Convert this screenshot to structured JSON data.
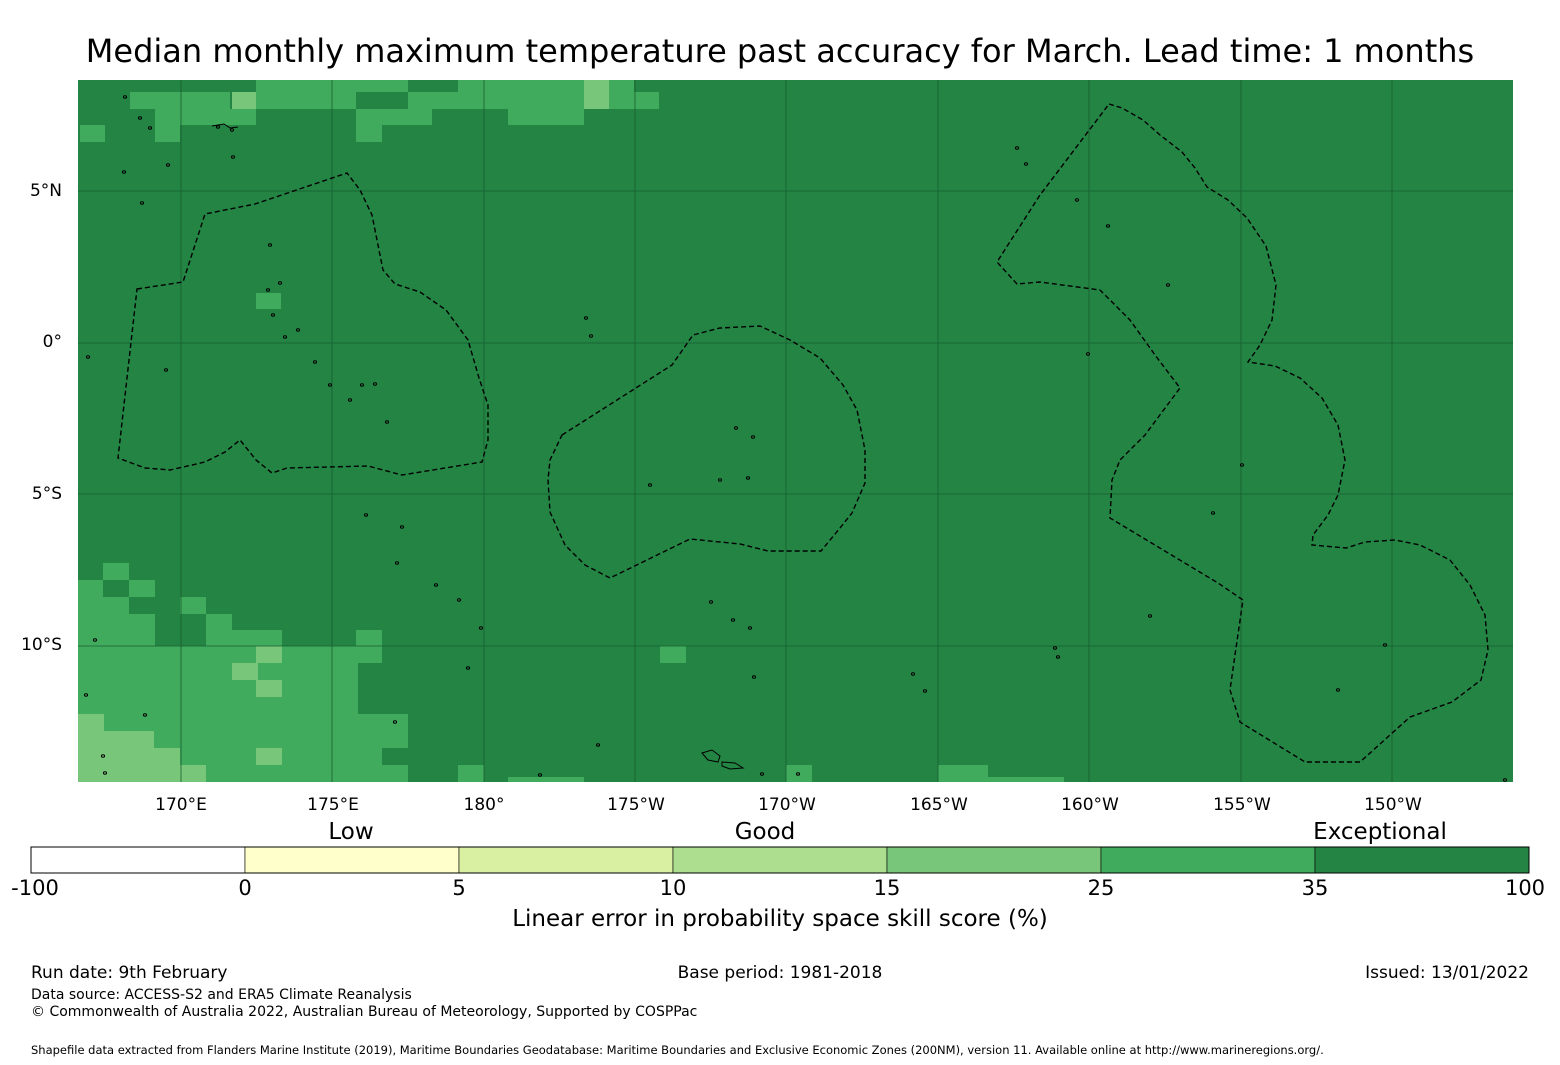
{
  "title": "Median monthly maximum temperature past accuracy for March. Lead time: 1 months",
  "map": {
    "lat_labels": [
      "5°N",
      "0°",
      "5°S",
      "10°S"
    ],
    "lon_labels": [
      "170°E",
      "175°E",
      "180°",
      "175°W",
      "170°W",
      "165°W",
      "160°W",
      "155°W",
      "150°W"
    ],
    "base_color": "#238443",
    "grid_color": "#1a5e30",
    "boundary_color": "#000000"
  },
  "colorbar": {
    "categories": [
      "Low",
      "Good",
      "Exceptional"
    ],
    "ticks": [
      "-100",
      "0",
      "5",
      "10",
      "15",
      "25",
      "35",
      "100"
    ],
    "bins": [
      {
        "from": -100,
        "to": 0,
        "color": "#ffffff"
      },
      {
        "from": 0,
        "to": 5,
        "color": "#ffffcc"
      },
      {
        "from": 5,
        "to": 10,
        "color": "#d9f0a3"
      },
      {
        "from": 10,
        "to": 15,
        "color": "#addd8e"
      },
      {
        "from": 15,
        "to": 25,
        "color": "#78c679"
      },
      {
        "from": 25,
        "to": 35,
        "color": "#41ab5d"
      },
      {
        "from": 35,
        "to": 100,
        "color": "#238443"
      }
    ],
    "title": "Linear error in probability space skill score (%)"
  },
  "footer": {
    "run_date": "Run date: 9th February",
    "base_period": "Base period: 1981-2018",
    "issued": "Issued: 13/01/2022",
    "data_source": "Data source: ACCESS-S2 and ERA5 Climate Reanalysis",
    "copyright": "© Commonwealth of Australia 2022, Australian Bureau of Meteorology, Supported by COSPPac",
    "shapefile": "Shapefile data extracted from Flanders Marine Institute (2019), Maritime Boundaries Geodatabase: Maritime Boundaries and Exclusive Economic Zones (200NM), version 11. Available online at http://www.marineregions.org/."
  }
}
